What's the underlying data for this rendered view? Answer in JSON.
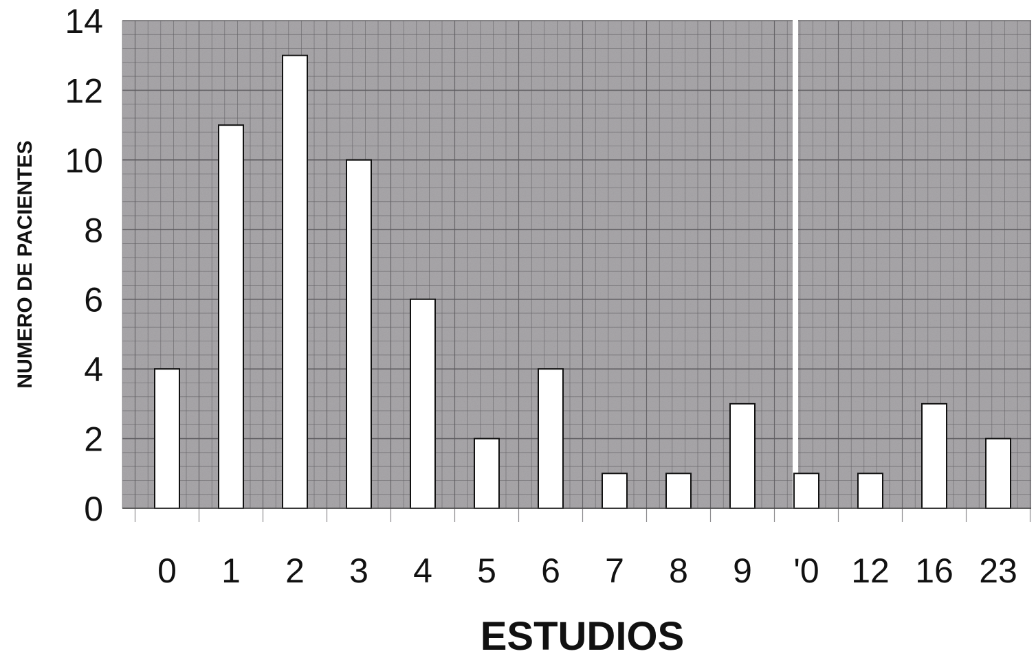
{
  "chart_data": {
    "type": "bar",
    "title": "",
    "xlabel": "ESTUDIOS",
    "ylabel": "NUMERO DE PACIENTES",
    "categories": [
      "0",
      "1",
      "2",
      "3",
      "4",
      "5",
      "6",
      "7",
      "8",
      "9",
      "'0",
      "12",
      "16",
      "23"
    ],
    "values": [
      4,
      11,
      13,
      10,
      6,
      2,
      4,
      1,
      1,
      3,
      1,
      1,
      3,
      2
    ],
    "yticks": [
      "0",
      "2",
      "4",
      "6",
      "8",
      "10",
      "12",
      "14"
    ],
    "ylim": [
      0,
      14
    ],
    "grid": true,
    "axis_break_after": "9",
    "colors": {
      "plot_background": "#a9a7aa",
      "grid_line": "#5e5c60",
      "bar_fill": "#ffffff",
      "bar_stroke": "#111111"
    }
  }
}
